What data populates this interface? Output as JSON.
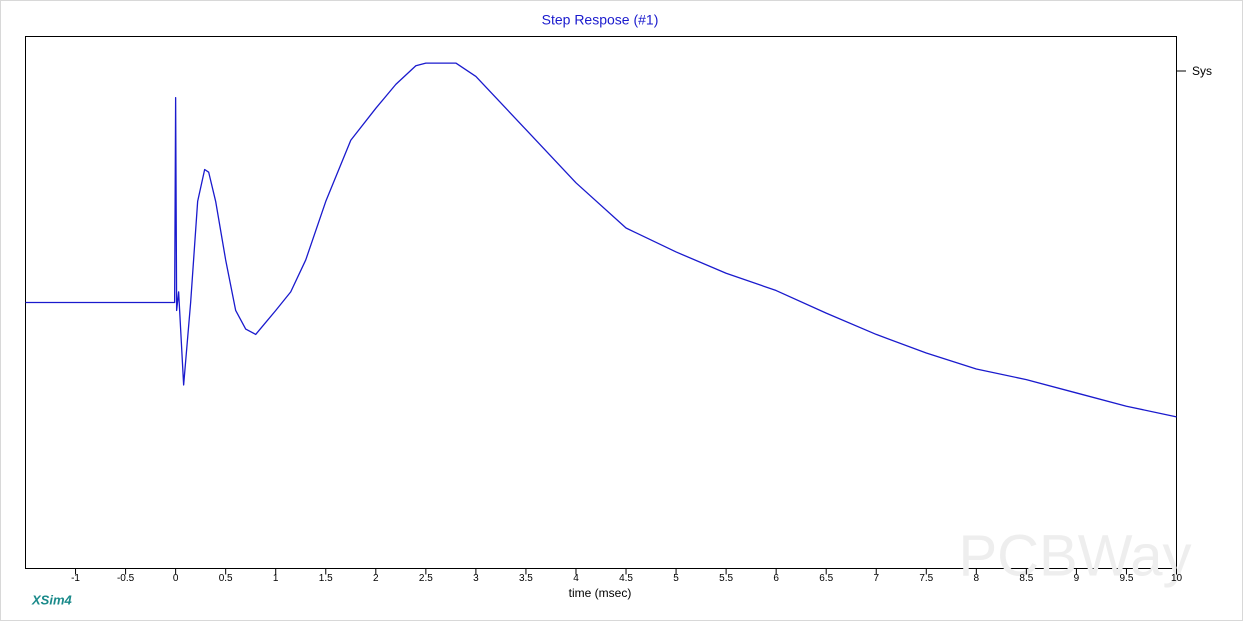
{
  "chart_data": {
    "type": "line",
    "title": "Step Respose (#1)",
    "xlabel": "time (msec)",
    "brand": "XSim4",
    "watermark": "PCBWay",
    "xlim": [
      -1.5,
      10
    ],
    "xticks": [
      -1,
      -0.5,
      0,
      0.5,
      1,
      1.5,
      2,
      2.5,
      3,
      3.5,
      4,
      4.5,
      5,
      5.5,
      6,
      6.5,
      7,
      7.5,
      8,
      8.5,
      9,
      9.5,
      10
    ],
    "ylim": [
      -1,
      1
    ],
    "series": [
      {
        "name": "Sys",
        "color": "#1a1acd",
        "x": [
          -1.5,
          -0.01,
          0,
          0.01,
          0.03,
          0.08,
          0.15,
          0.22,
          0.29,
          0.33,
          0.4,
          0.5,
          0.6,
          0.7,
          0.8,
          0.9,
          1.0,
          1.15,
          1.3,
          1.5,
          1.75,
          2.0,
          2.2,
          2.4,
          2.5,
          2.8,
          3.0,
          3.5,
          4.0,
          4.5,
          5.0,
          5.5,
          6.0,
          6.5,
          7.0,
          7.5,
          8.0,
          8.5,
          9.0,
          9.5,
          10.0
        ],
        "values": [
          0,
          0,
          0.77,
          -0.03,
          0.04,
          -0.31,
          0,
          0.38,
          0.5,
          0.49,
          0.38,
          0.16,
          -0.03,
          -0.1,
          -0.12,
          -0.075,
          -0.03,
          0.04,
          0.16,
          0.38,
          0.61,
          0.73,
          0.82,
          0.89,
          0.9,
          0.9,
          0.85,
          0.65,
          0.45,
          0.28,
          0.19,
          0.11,
          0.045,
          -0.04,
          -0.12,
          -0.19,
          -0.25,
          -0.29,
          -0.34,
          -0.39,
          -0.43
        ]
      }
    ]
  }
}
